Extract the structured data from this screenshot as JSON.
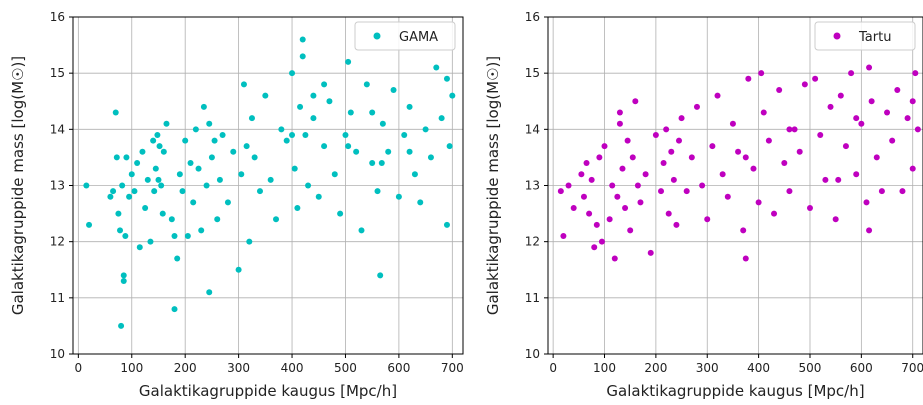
{
  "chart_data": [
    {
      "type": "scatter",
      "xlabel": "Galaktikagruppide kaugus [Mpc/h]",
      "ylabel": "Galaktikagruppide mass [log(M☉)]",
      "xlim": [
        -10,
        720
      ],
      "ylim": [
        10,
        16
      ],
      "xticks": [
        "0",
        "100",
        "200",
        "300",
        "400",
        "500",
        "600",
        "700"
      ],
      "yticks": [
        "10",
        "11",
        "12",
        "13",
        "14",
        "15",
        "16"
      ],
      "grid": true,
      "legend_position": "top-right",
      "series": [
        {
          "name": "GAMA",
          "color": "#00bfbf",
          "x": [
            15,
            20,
            60,
            65,
            70,
            72,
            75,
            78,
            80,
            82,
            85,
            88,
            90,
            95,
            100,
            105,
            110,
            115,
            120,
            125,
            130,
            135,
            140,
            142,
            145,
            148,
            150,
            152,
            155,
            158,
            160,
            165,
            175,
            180,
            185,
            190,
            195,
            200,
            205,
            210,
            215,
            220,
            225,
            230,
            235,
            240,
            245,
            250,
            255,
            260,
            265,
            270,
            280,
            290,
            300,
            305,
            310,
            315,
            320,
            325,
            330,
            340,
            350,
            360,
            370,
            380,
            390,
            400,
            405,
            410,
            415,
            420,
            425,
            430,
            440,
            450,
            460,
            470,
            480,
            490,
            500,
            505,
            510,
            520,
            530,
            540,
            550,
            560,
            565,
            570,
            580,
            590,
            600,
            610,
            620,
            630,
            640,
            650,
            660,
            670,
            680,
            690,
            695,
            700,
            85,
            180,
            245,
            420,
            440,
            505,
            568,
            400,
            460,
            550,
            620,
            690
          ],
          "y": [
            13.0,
            12.3,
            12.8,
            12.9,
            14.3,
            13.5,
            12.5,
            12.2,
            10.5,
            13.0,
            11.4,
            12.1,
            13.5,
            12.8,
            13.2,
            12.9,
            13.4,
            11.9,
            13.6,
            12.6,
            13.1,
            12.0,
            13.8,
            12.9,
            13.3,
            13.9,
            13.1,
            13.7,
            13.0,
            12.5,
            13.6,
            14.1,
            12.4,
            10.8,
            11.7,
            13.2,
            12.9,
            13.8,
            12.1,
            13.4,
            12.7,
            14.0,
            13.3,
            12.2,
            14.4,
            13.0,
            11.1,
            13.5,
            13.8,
            12.4,
            13.1,
            13.9,
            12.7,
            13.6,
            11.5,
            13.2,
            14.8,
            13.7,
            12.0,
            14.2,
            13.5,
            12.9,
            14.6,
            13.1,
            12.4,
            14.0,
            13.8,
            15.0,
            13.3,
            12.6,
            14.4,
            15.6,
            13.9,
            13.0,
            14.2,
            12.8,
            13.7,
            14.5,
            13.2,
            12.5,
            13.9,
            15.2,
            14.3,
            13.6,
            12.2,
            14.8,
            13.4,
            12.9,
            11.4,
            14.1,
            13.6,
            14.7,
            12.8,
            13.9,
            14.4,
            13.2,
            12.7,
            14.0,
            13.5,
            15.1,
            14.2,
            12.3,
            13.7,
            14.6,
            11.3,
            12.1,
            14.1,
            15.3,
            14.6,
            13.7,
            13.4,
            13.9,
            14.8,
            14.3,
            13.6,
            14.9
          ]
        },
        {
          "name": "Tartu",
          "color": "#bf00bf",
          "x": [
            15,
            20,
            30,
            40,
            55,
            60,
            65,
            70,
            75,
            80,
            85,
            90,
            95,
            100,
            110,
            115,
            120,
            125,
            130,
            135,
            140,
            145,
            150,
            155,
            160,
            165,
            170,
            180,
            190,
            200,
            210,
            215,
            220,
            225,
            230,
            235,
            240,
            245,
            250,
            260,
            270,
            280,
            290,
            300,
            310,
            320,
            330,
            340,
            350,
            360,
            370,
            375,
            380,
            390,
            400,
            405,
            410,
            420,
            430,
            440,
            450,
            460,
            470,
            480,
            490,
            500,
            510,
            520,
            530,
            540,
            550,
            560,
            570,
            580,
            590,
            600,
            610,
            615,
            620,
            630,
            640,
            650,
            660,
            670,
            680,
            690,
            700,
            705,
            710,
            130,
            375,
            460,
            555,
            590,
            615,
            700
          ],
          "y": [
            12.9,
            12.1,
            13.0,
            12.6,
            13.2,
            12.8,
            13.4,
            12.5,
            13.1,
            11.9,
            12.3,
            13.5,
            12.0,
            13.7,
            12.4,
            13.0,
            11.7,
            12.8,
            14.1,
            13.3,
            12.6,
            13.8,
            12.2,
            13.5,
            14.5,
            13.0,
            12.7,
            13.2,
            11.8,
            13.9,
            12.9,
            13.4,
            14.0,
            12.5,
            13.6,
            13.1,
            12.3,
            13.8,
            14.2,
            12.9,
            13.5,
            14.4,
            13.0,
            12.4,
            13.7,
            14.6,
            13.2,
            12.8,
            14.1,
            13.6,
            12.2,
            11.7,
            14.9,
            13.3,
            12.7,
            15.0,
            14.3,
            13.8,
            12.5,
            14.7,
            13.4,
            12.9,
            14.0,
            13.6,
            14.8,
            12.6,
            14.9,
            13.9,
            13.1,
            14.4,
            12.4,
            14.6,
            13.7,
            15.0,
            13.2,
            14.1,
            12.7,
            15.1,
            14.5,
            13.5,
            12.9,
            14.3,
            13.8,
            14.7,
            12.9,
            14.2,
            13.3,
            15.0,
            14.0,
            14.3,
            13.5,
            14.0,
            13.1,
            14.2,
            12.2,
            14.5
          ]
        }
      ]
    }
  ]
}
